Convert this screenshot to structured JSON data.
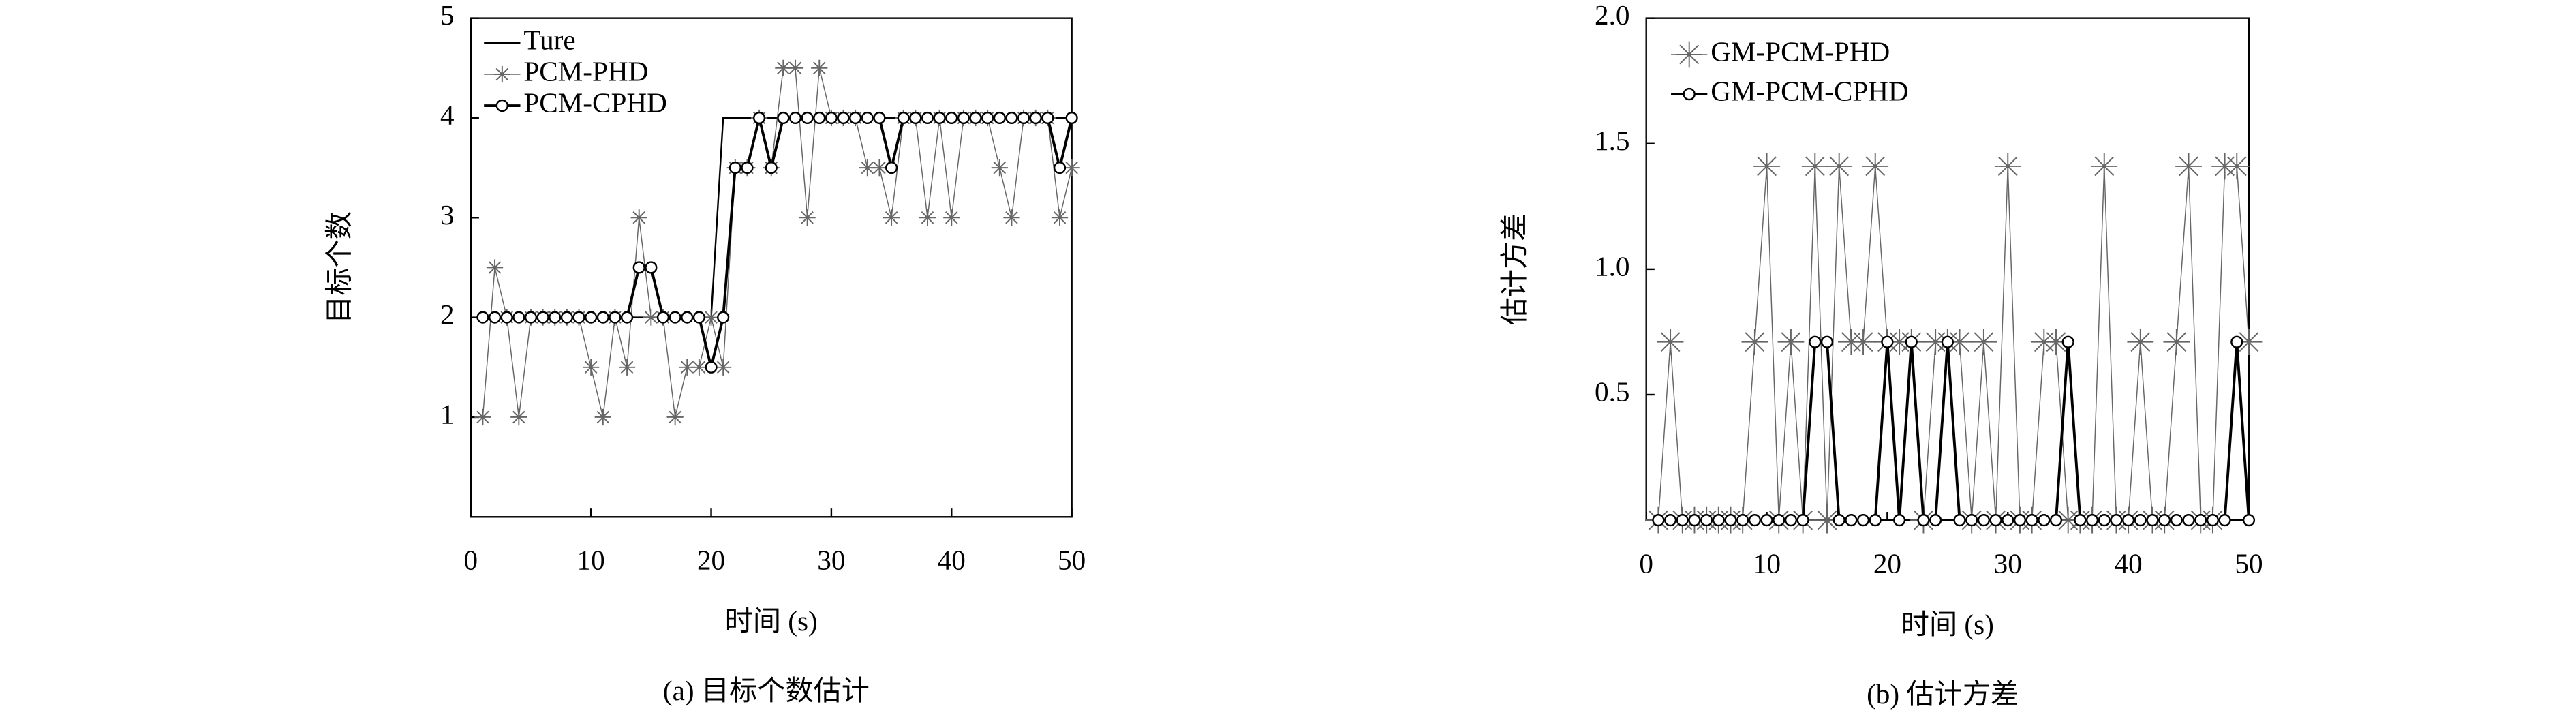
{
  "chart_data": [
    {
      "type": "line",
      "caption": "(a) 目标个数估计",
      "xlabel": "时间 (s)",
      "ylabel": "目标个数",
      "x": [
        1,
        2,
        3,
        4,
        5,
        6,
        7,
        8,
        9,
        10,
        11,
        12,
        13,
        14,
        15,
        16,
        17,
        18,
        19,
        20,
        21,
        22,
        23,
        24,
        25,
        26,
        27,
        28,
        29,
        30,
        31,
        32,
        33,
        34,
        35,
        36,
        37,
        38,
        39,
        40,
        41,
        42,
        43,
        44,
        45,
        46,
        47,
        48,
        49,
        50
      ],
      "series": [
        {
          "name": "Ture",
          "color": "#000000",
          "marker": "none",
          "width": 1,
          "values": [
            2,
            2,
            2,
            2,
            2,
            2,
            2,
            2,
            2,
            2,
            2,
            2,
            2,
            2,
            2,
            2,
            2,
            2,
            2,
            2,
            4,
            4,
            4,
            4,
            4,
            4,
            4,
            4,
            4,
            4,
            4,
            4,
            4,
            4,
            4,
            4,
            4,
            4,
            4,
            4,
            4,
            4,
            4,
            4,
            4,
            4,
            4,
            4,
            4,
            4
          ]
        },
        {
          "name": "PCM-PHD",
          "color": "#666666",
          "marker": "star",
          "width": 0.6,
          "values": [
            1,
            2.5,
            2,
            1,
            2,
            2,
            2,
            2,
            2,
            1.5,
            1,
            2,
            1.5,
            3,
            2,
            2,
            1,
            1.5,
            1.5,
            2,
            1.5,
            3.5,
            3.5,
            4,
            3.5,
            4.5,
            4.5,
            3,
            4.5,
            4,
            4,
            4,
            3.5,
            3.5,
            3,
            4,
            4,
            3,
            4,
            3,
            4,
            4,
            4,
            3.5,
            3,
            4,
            4,
            4,
            3,
            3.5
          ]
        },
        {
          "name": "PCM-CPHD",
          "color": "#000000",
          "marker": "circle",
          "width": 1.6,
          "values": [
            2,
            2,
            2,
            2,
            2,
            2,
            2,
            2,
            2,
            2,
            2,
            2,
            2,
            2.5,
            2.5,
            2,
            2,
            2,
            2,
            1.5,
            2,
            3.5,
            3.5,
            4,
            3.5,
            4,
            4,
            4,
            4,
            4,
            4,
            4,
            4,
            4,
            3.5,
            4,
            4,
            4,
            4,
            4,
            4,
            4,
            4,
            4,
            4,
            4,
            4,
            4,
            3.5,
            4
          ]
        }
      ],
      "xlim": [
        0,
        50
      ],
      "xticks": [
        0,
        10,
        20,
        30,
        40,
        50
      ],
      "ylim": [
        0,
        5
      ],
      "yticks": [
        1,
        2,
        3,
        4,
        5
      ],
      "legend": "upper left",
      "grid": false
    },
    {
      "type": "line",
      "caption": "(b) 估计方差",
      "xlabel": "时间 (s)",
      "ylabel": "估计方差",
      "x": [
        1,
        2,
        3,
        4,
        5,
        6,
        7,
        8,
        9,
        10,
        11,
        12,
        13,
        14,
        15,
        16,
        17,
        18,
        19,
        20,
        21,
        22,
        23,
        24,
        25,
        26,
        27,
        28,
        29,
        30,
        31,
        32,
        33,
        34,
        35,
        36,
        37,
        38,
        39,
        40,
        41,
        42,
        43,
        44,
        45,
        46,
        47,
        48,
        49,
        50
      ],
      "series": [
        {
          "name": "GM-PCM-PHD",
          "color": "#666666",
          "marker": "star",
          "width": 0.6,
          "values": [
            0,
            0.71,
            0,
            0,
            0,
            0,
            0,
            0,
            0.71,
            1.41,
            0,
            0.71,
            0,
            1.41,
            0,
            1.41,
            0.71,
            0.71,
            1.41,
            0.71,
            0.71,
            0.71,
            0,
            0.71,
            0.71,
            0.71,
            0,
            0.71,
            0,
            1.41,
            0,
            0,
            0.71,
            0.71,
            0,
            0,
            0,
            1.41,
            0,
            0,
            0.71,
            0,
            0,
            0.71,
            1.41,
            0,
            0,
            1.41,
            1.41,
            0.71
          ]
        },
        {
          "name": "GM-PCM-CPHD",
          "color": "#000000",
          "marker": "circle",
          "width": 1.6,
          "values": [
            0,
            0,
            0,
            0,
            0,
            0,
            0,
            0,
            0,
            0,
            0,
            0,
            0,
            0.71,
            0.71,
            0,
            0,
            0,
            0,
            0.71,
            0,
            0.71,
            0,
            0,
            0.71,
            0,
            0,
            0,
            0,
            0,
            0,
            0,
            0,
            0,
            0.71,
            0,
            0,
            0,
            0,
            0,
            0,
            0,
            0,
            0,
            0,
            0,
            0,
            0,
            0.71,
            0
          ]
        }
      ],
      "xlim": [
        0,
        50
      ],
      "xticks": [
        0,
        10,
        20,
        30,
        40,
        50
      ],
      "ylim": [
        0,
        2
      ],
      "yticks": [
        0.5,
        {
          "value": 1,
          "label": "1.0"
        },
        1.5,
        {
          "value": 2,
          "label": "2.0"
        }
      ],
      "legend": "upper left",
      "grid": false
    }
  ]
}
